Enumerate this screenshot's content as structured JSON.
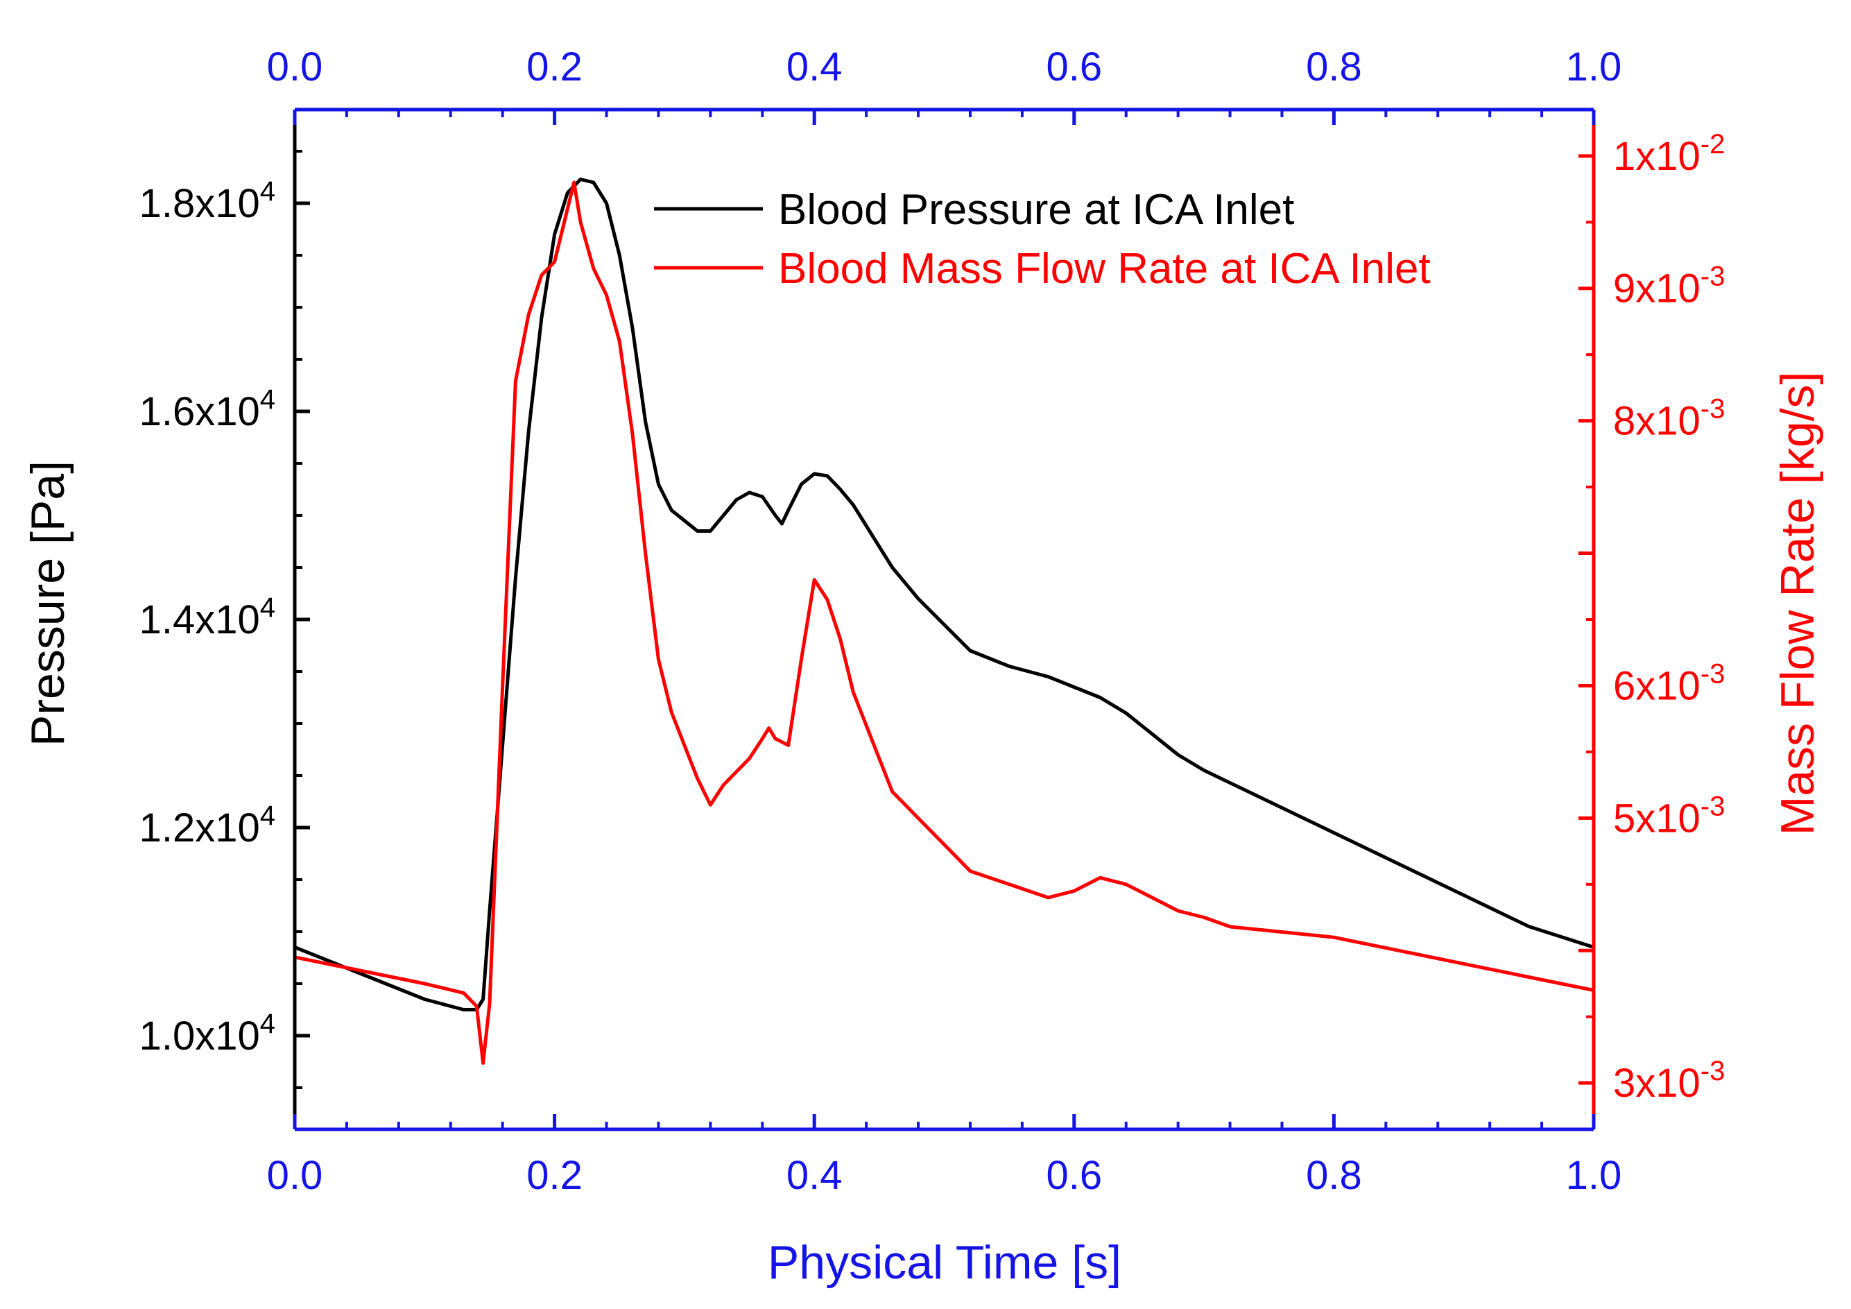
{
  "chart_data": {
    "type": "line",
    "xlabel": "Physical Time [s]",
    "ylabel": "Pressure [Pa]",
    "y2label": "Mass Flow Rate [kg/s]",
    "xlim": [
      0.0,
      1.0
    ],
    "ylim": [
      9100,
      18900
    ],
    "y2lim": [
      0.00265,
      0.01035
    ],
    "grid": false,
    "legend_position": "top-right",
    "colors": {
      "axis_x": "#1414e6",
      "axis_left": "#000000",
      "axis_right": "#ff0000",
      "pressure": "#000000",
      "flow": "#ff0000"
    },
    "x_ticks": [
      {
        "value": 0.0,
        "label": "0.0"
      },
      {
        "value": 0.2,
        "label": "0.2"
      },
      {
        "value": 0.4,
        "label": "0.4"
      },
      {
        "value": 0.6,
        "label": "0.6"
      },
      {
        "value": 0.8,
        "label": "0.8"
      },
      {
        "value": 1.0,
        "label": "1.0"
      }
    ],
    "y_ticks": [
      {
        "value": 10000,
        "label": "1.0x10",
        "exp": "4"
      },
      {
        "value": 12000,
        "label": "1.2x10",
        "exp": "4"
      },
      {
        "value": 14000,
        "label": "1.4x10",
        "exp": "4"
      },
      {
        "value": 16000,
        "label": "1.6x10",
        "exp": "4"
      },
      {
        "value": 18000,
        "label": "1.8x10",
        "exp": "4"
      }
    ],
    "y2_ticks": [
      {
        "value": 0.003,
        "label": "3x10",
        "exp": "-3"
      },
      {
        "value": 0.005,
        "label": "5x10",
        "exp": "-3"
      },
      {
        "value": 0.006,
        "label": "6x10",
        "exp": "-3"
      },
      {
        "value": 0.008,
        "label": "8x10",
        "exp": "-3"
      },
      {
        "value": 0.009,
        "label": "9x10",
        "exp": "-3"
      },
      {
        "value": 0.01,
        "label": "1x10",
        "exp": "-2"
      }
    ],
    "series": [
      {
        "name": "Blood Pressure at ICA Inlet",
        "axis": "left",
        "color": "#000000",
        "x": [
          0.0,
          0.05,
          0.1,
          0.13,
          0.14,
          0.145,
          0.15,
          0.16,
          0.17,
          0.18,
          0.19,
          0.2,
          0.21,
          0.22,
          0.23,
          0.24,
          0.25,
          0.26,
          0.27,
          0.28,
          0.29,
          0.3,
          0.31,
          0.32,
          0.33,
          0.34,
          0.35,
          0.36,
          0.37,
          0.375,
          0.38,
          0.39,
          0.4,
          0.41,
          0.42,
          0.43,
          0.44,
          0.45,
          0.46,
          0.48,
          0.5,
          0.52,
          0.55,
          0.58,
          0.6,
          0.62,
          0.64,
          0.66,
          0.68,
          0.7,
          0.75,
          0.8,
          0.85,
          0.9,
          0.95,
          1.0
        ],
        "values": [
          10850,
          10600,
          10350,
          10250,
          10250,
          10350,
          11200,
          12800,
          14400,
          15800,
          16900,
          17700,
          18100,
          18230,
          18200,
          18000,
          17500,
          16800,
          15900,
          15300,
          15050,
          14950,
          14850,
          14850,
          15000,
          15150,
          15220,
          15180,
          15000,
          14920,
          15050,
          15300,
          15400,
          15380,
          15250,
          15100,
          14900,
          14700,
          14500,
          14200,
          13950,
          13700,
          13550,
          13450,
          13350,
          13250,
          13100,
          12900,
          12700,
          12550,
          12250,
          11950,
          11650,
          11350,
          11050,
          10850
        ]
      },
      {
        "name": "Blood Mass Flow Rate at ICA Inlet",
        "axis": "right",
        "color": "#ff0000",
        "x": [
          0.0,
          0.05,
          0.1,
          0.13,
          0.14,
          0.145,
          0.15,
          0.16,
          0.17,
          0.18,
          0.19,
          0.2,
          0.21,
          0.215,
          0.22,
          0.23,
          0.24,
          0.25,
          0.26,
          0.27,
          0.28,
          0.29,
          0.3,
          0.31,
          0.32,
          0.33,
          0.34,
          0.35,
          0.36,
          0.365,
          0.37,
          0.38,
          0.39,
          0.4,
          0.41,
          0.42,
          0.43,
          0.44,
          0.45,
          0.46,
          0.47,
          0.48,
          0.5,
          0.52,
          0.55,
          0.58,
          0.6,
          0.62,
          0.64,
          0.66,
          0.68,
          0.7,
          0.72,
          0.75,
          0.8,
          0.85,
          0.9,
          0.95,
          1.0
        ],
        "values": [
          0.00395,
          0.00385,
          0.00375,
          0.00368,
          0.00358,
          0.00315,
          0.0036,
          0.006,
          0.0083,
          0.0088,
          0.0091,
          0.0092,
          0.0096,
          0.0098,
          0.0095,
          0.00915,
          0.00895,
          0.0086,
          0.0079,
          0.007,
          0.0062,
          0.0058,
          0.00555,
          0.0053,
          0.0051,
          0.00525,
          0.00535,
          0.00545,
          0.0056,
          0.00568,
          0.0056,
          0.00555,
          0.0062,
          0.0068,
          0.00665,
          0.00635,
          0.00595,
          0.0057,
          0.00545,
          0.0052,
          0.0051,
          0.005,
          0.0048,
          0.0046,
          0.0045,
          0.0044,
          0.00445,
          0.00455,
          0.0045,
          0.0044,
          0.0043,
          0.00425,
          0.00418,
          0.00415,
          0.0041,
          0.004,
          0.0039,
          0.0038,
          0.0037
        ]
      }
    ]
  }
}
